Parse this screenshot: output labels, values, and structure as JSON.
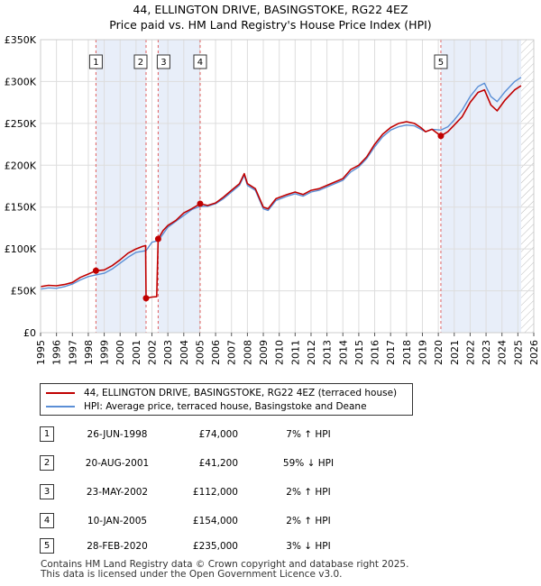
{
  "title": {
    "line1": "44, ELLINGTON DRIVE, BASINGSTOKE, RG22 4EZ",
    "line2": "Price paid vs. HM Land Registry's House Price Index (HPI)"
  },
  "colors": {
    "price_line": "#c00000",
    "hpi_line": "#5b8fd6",
    "shade": "#e8eef9",
    "vline": "#e06060",
    "grid": "#dddddd"
  },
  "chart_data": {
    "type": "line",
    "x_unit": "year",
    "xlim": [
      1995,
      2026
    ],
    "ylim": [
      0,
      350000
    ],
    "yticks": [
      0,
      50000,
      100000,
      150000,
      200000,
      250000,
      300000,
      350000
    ],
    "ytick_labels": [
      "£0",
      "£50K",
      "£100K",
      "£150K",
      "£200K",
      "£250K",
      "£300K",
      "£350K"
    ],
    "xtick_labels": [
      "1995",
      "1996",
      "1997",
      "1998",
      "1999",
      "2000",
      "2001",
      "2002",
      "2003",
      "2004",
      "2005",
      "2006",
      "2007",
      "2008",
      "2009",
      "2010",
      "2011",
      "2012",
      "2013",
      "2014",
      "2015",
      "2016",
      "2017",
      "2018",
      "2019",
      "2020",
      "2021",
      "2022",
      "2023",
      "2024",
      "2025",
      "2026"
    ],
    "grid": true,
    "shaded_periods": [
      [
        1998.48,
        2001.63
      ],
      [
        2002.39,
        2005.03
      ],
      [
        2020.16,
        2025.2
      ]
    ],
    "hatched_future_from": 2025.2,
    "series": [
      {
        "name": "44, ELLINGTON DRIVE, BASINGSTOKE, RG22 4EZ (terraced house)",
        "points": [
          [
            1995.0,
            55000
          ],
          [
            1995.5,
            56500
          ],
          [
            1996.0,
            56000
          ],
          [
            1996.5,
            57500
          ],
          [
            1997.0,
            60000
          ],
          [
            1997.5,
            66000
          ],
          [
            1998.0,
            70000
          ],
          [
            1998.48,
            74000
          ],
          [
            1999.0,
            75000
          ],
          [
            1999.5,
            80000
          ],
          [
            2000.0,
            87000
          ],
          [
            2000.5,
            95000
          ],
          [
            2001.0,
            100000
          ],
          [
            2001.4,
            103000
          ],
          [
            2001.6,
            104000
          ],
          [
            2001.63,
            41200
          ],
          [
            2002.0,
            42500
          ],
          [
            2002.3,
            43000
          ],
          [
            2002.39,
            112000
          ],
          [
            2002.7,
            122000
          ],
          [
            2003.0,
            128000
          ],
          [
            2003.5,
            134000
          ],
          [
            2004.0,
            143000
          ],
          [
            2004.5,
            148000
          ],
          [
            2005.03,
            154000
          ],
          [
            2005.5,
            152000
          ],
          [
            2006.0,
            155000
          ],
          [
            2006.5,
            162000
          ],
          [
            2007.0,
            170000
          ],
          [
            2007.5,
            178000
          ],
          [
            2007.8,
            190000
          ],
          [
            2008.0,
            178000
          ],
          [
            2008.5,
            172000
          ],
          [
            2009.0,
            150000
          ],
          [
            2009.3,
            148000
          ],
          [
            2009.8,
            160000
          ],
          [
            2010.5,
            165000
          ],
          [
            2011.0,
            168000
          ],
          [
            2011.5,
            165000
          ],
          [
            2012.0,
            170000
          ],
          [
            2012.5,
            172000
          ],
          [
            2013.0,
            176000
          ],
          [
            2013.5,
            180000
          ],
          [
            2014.0,
            184000
          ],
          [
            2014.5,
            195000
          ],
          [
            2015.0,
            200000
          ],
          [
            2015.5,
            210000
          ],
          [
            2016.0,
            225000
          ],
          [
            2016.5,
            237000
          ],
          [
            2017.0,
            245000
          ],
          [
            2017.5,
            250000
          ],
          [
            2018.0,
            252000
          ],
          [
            2018.5,
            250000
          ],
          [
            2018.9,
            245000
          ],
          [
            2019.2,
            240000
          ],
          [
            2019.6,
            243000
          ],
          [
            2020.16,
            235000
          ],
          [
            2020.6,
            240000
          ],
          [
            2021.0,
            248000
          ],
          [
            2021.5,
            258000
          ],
          [
            2022.0,
            275000
          ],
          [
            2022.5,
            287000
          ],
          [
            2022.9,
            290000
          ],
          [
            2023.3,
            272000
          ],
          [
            2023.7,
            265000
          ],
          [
            2024.2,
            278000
          ],
          [
            2024.8,
            290000
          ],
          [
            2025.2,
            295000
          ]
        ]
      },
      {
        "name": "HPI: Average price, terraced house, Basingstoke and Deane",
        "points": [
          [
            1995.0,
            52000
          ],
          [
            1995.5,
            53500
          ],
          [
            1996.0,
            53000
          ],
          [
            1996.5,
            55000
          ],
          [
            1997.0,
            58000
          ],
          [
            1997.5,
            63000
          ],
          [
            1998.0,
            67000
          ],
          [
            1998.48,
            69000
          ],
          [
            1999.0,
            71000
          ],
          [
            1999.5,
            76000
          ],
          [
            2000.0,
            83000
          ],
          [
            2000.5,
            90000
          ],
          [
            2001.0,
            96000
          ],
          [
            2001.63,
            98000
          ],
          [
            2002.0,
            108000
          ],
          [
            2002.39,
            110000
          ],
          [
            2002.7,
            118000
          ],
          [
            2003.0,
            126000
          ],
          [
            2003.5,
            133000
          ],
          [
            2004.0,
            140000
          ],
          [
            2004.5,
            147000
          ],
          [
            2005.03,
            151000
          ],
          [
            2005.5,
            151000
          ],
          [
            2006.0,
            154000
          ],
          [
            2006.5,
            160000
          ],
          [
            2007.0,
            168000
          ],
          [
            2007.5,
            176000
          ],
          [
            2007.8,
            188000
          ],
          [
            2008.0,
            176000
          ],
          [
            2008.5,
            170000
          ],
          [
            2009.0,
            148000
          ],
          [
            2009.3,
            146000
          ],
          [
            2009.8,
            158000
          ],
          [
            2010.5,
            163000
          ],
          [
            2011.0,
            166000
          ],
          [
            2011.5,
            163000
          ],
          [
            2012.0,
            168000
          ],
          [
            2012.5,
            170000
          ],
          [
            2013.0,
            174000
          ],
          [
            2013.5,
            178000
          ],
          [
            2014.0,
            182000
          ],
          [
            2014.5,
            192000
          ],
          [
            2015.0,
            198000
          ],
          [
            2015.5,
            208000
          ],
          [
            2016.0,
            222000
          ],
          [
            2016.5,
            234000
          ],
          [
            2017.0,
            242000
          ],
          [
            2017.5,
            246000
          ],
          [
            2018.0,
            248000
          ],
          [
            2018.5,
            247000
          ],
          [
            2018.9,
            243000
          ],
          [
            2019.2,
            240000
          ],
          [
            2019.6,
            243000
          ],
          [
            2020.16,
            242000
          ],
          [
            2020.6,
            246000
          ],
          [
            2021.0,
            254000
          ],
          [
            2021.5,
            266000
          ],
          [
            2022.0,
            282000
          ],
          [
            2022.5,
            294000
          ],
          [
            2022.9,
            298000
          ],
          [
            2023.3,
            282000
          ],
          [
            2023.7,
            276000
          ],
          [
            2024.2,
            288000
          ],
          [
            2024.8,
            300000
          ],
          [
            2025.2,
            305000
          ]
        ]
      }
    ],
    "sales": [
      {
        "label": "1",
        "x": 1998.48,
        "price": 74000
      },
      {
        "label": "2",
        "x": 2001.63,
        "price": 41200
      },
      {
        "label": "3",
        "x": 2002.39,
        "price": 112000
      },
      {
        "label": "4",
        "x": 2005.03,
        "price": 154000
      },
      {
        "label": "5",
        "x": 2020.16,
        "price": 235000
      }
    ]
  },
  "legend": {
    "items": [
      {
        "label": "44, ELLINGTON DRIVE, BASINGSTOKE, RG22 4EZ (terraced house)"
      },
      {
        "label": "HPI: Average price, terraced house, Basingstoke and Deane"
      }
    ]
  },
  "transactions": [
    {
      "num": "1",
      "date": "26-JUN-1998",
      "price": "£74,000",
      "diff": "7% ↑ HPI"
    },
    {
      "num": "2",
      "date": "20-AUG-2001",
      "price": "£41,200",
      "diff": "59% ↓ HPI"
    },
    {
      "num": "3",
      "date": "23-MAY-2002",
      "price": "£112,000",
      "diff": "2% ↑ HPI"
    },
    {
      "num": "4",
      "date": "10-JAN-2005",
      "price": "£154,000",
      "diff": "2% ↑ HPI"
    },
    {
      "num": "5",
      "date": "28-FEB-2020",
      "price": "£235,000",
      "diff": "3% ↓ HPI"
    }
  ],
  "footer": {
    "line1": "Contains HM Land Registry data © Crown copyright and database right 2025.",
    "line2": "This data is licensed under the Open Government Licence v3.0."
  }
}
